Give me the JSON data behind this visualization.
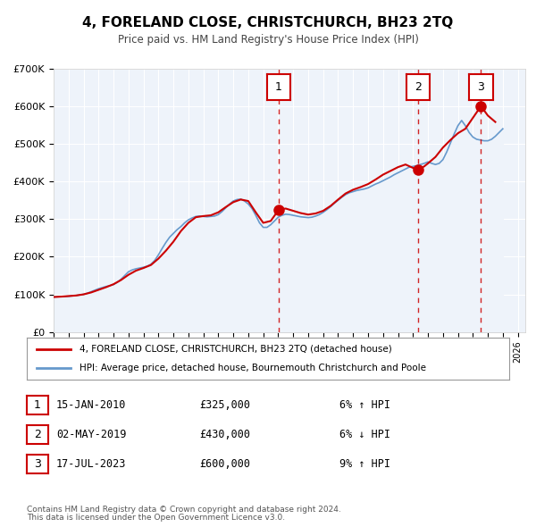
{
  "title": "4, FORELAND CLOSE, CHRISTCHURCH, BH23 2TQ",
  "subtitle": "Price paid vs. HM Land Registry's House Price Index (HPI)",
  "legend_line1": "4, FORELAND CLOSE, CHRISTCHURCH, BH23 2TQ (detached house)",
  "legend_line2": "HPI: Average price, detached house, Bournemouth Christchurch and Poole",
  "footer1": "Contains HM Land Registry data © Crown copyright and database right 2024.",
  "footer2": "This data is licensed under the Open Government Licence v3.0.",
  "price_color": "#cc0000",
  "hpi_color": "#aaccee",
  "hpi_line_color": "#6699cc",
  "marker_color": "#cc0000",
  "dashed_line_color": "#cc0000",
  "background_fill": "#eef3fa",
  "table_border_color": "#cc0000",
  "ylim": [
    0,
    700000
  ],
  "yticks": [
    0,
    100000,
    200000,
    300000,
    400000,
    500000,
    600000,
    700000
  ],
  "ytick_labels": [
    "£0",
    "£100K",
    "£200K",
    "£300K",
    "£400K",
    "£500K",
    "£600K",
    "£700K"
  ],
  "xlim_start": 1995.0,
  "xlim_end": 2026.5,
  "purchases": [
    {
      "label": "1",
      "date": 2010.04,
      "price": 325000,
      "date_str": "15-JAN-2010",
      "price_str": "£325,000",
      "pct": "6%",
      "dir": "↑"
    },
    {
      "label": "2",
      "date": 2019.33,
      "price": 430000,
      "date_str": "02-MAY-2019",
      "price_str": "£430,000",
      "pct": "6%",
      "dir": "↓"
    },
    {
      "label": "3",
      "date": 2023.54,
      "price": 600000,
      "date_str": "17-JUL-2023",
      "price_str": "£600,000",
      "pct": "9%",
      "dir": "↑"
    }
  ],
  "hpi_data_x": [
    1995.0,
    1995.25,
    1995.5,
    1995.75,
    1996.0,
    1996.25,
    1996.5,
    1996.75,
    1997.0,
    1997.25,
    1997.5,
    1997.75,
    1998.0,
    1998.25,
    1998.5,
    1998.75,
    1999.0,
    1999.25,
    1999.5,
    1999.75,
    2000.0,
    2000.25,
    2000.5,
    2000.75,
    2001.0,
    2001.25,
    2001.5,
    2001.75,
    2002.0,
    2002.25,
    2002.5,
    2002.75,
    2003.0,
    2003.25,
    2003.5,
    2003.75,
    2004.0,
    2004.25,
    2004.5,
    2004.75,
    2005.0,
    2005.25,
    2005.5,
    2005.75,
    2006.0,
    2006.25,
    2006.5,
    2006.75,
    2007.0,
    2007.25,
    2007.5,
    2007.75,
    2008.0,
    2008.25,
    2008.5,
    2008.75,
    2009.0,
    2009.25,
    2009.5,
    2009.75,
    2010.0,
    2010.25,
    2010.5,
    2010.75,
    2011.0,
    2011.25,
    2011.5,
    2011.75,
    2012.0,
    2012.25,
    2012.5,
    2012.75,
    2013.0,
    2013.25,
    2013.5,
    2013.75,
    2014.0,
    2014.25,
    2014.5,
    2014.75,
    2015.0,
    2015.25,
    2015.5,
    2015.75,
    2016.0,
    2016.25,
    2016.5,
    2016.75,
    2017.0,
    2017.25,
    2017.5,
    2017.75,
    2018.0,
    2018.25,
    2018.5,
    2018.75,
    2019.0,
    2019.25,
    2019.5,
    2019.75,
    2020.0,
    2020.25,
    2020.5,
    2020.75,
    2021.0,
    2021.25,
    2021.5,
    2021.75,
    2022.0,
    2022.25,
    2022.5,
    2022.75,
    2023.0,
    2023.25,
    2023.5,
    2023.75,
    2024.0,
    2024.25,
    2024.5,
    2024.75,
    2025.0
  ],
  "hpi_data_y": [
    93000,
    93500,
    94000,
    94500,
    95000,
    96000,
    97000,
    98500,
    100000,
    103000,
    107000,
    111000,
    115000,
    118000,
    121000,
    123000,
    126000,
    132000,
    140000,
    150000,
    160000,
    165000,
    168000,
    170000,
    172000,
    175000,
    180000,
    190000,
    205000,
    222000,
    238000,
    252000,
    262000,
    272000,
    280000,
    290000,
    298000,
    303000,
    307000,
    308000,
    307000,
    306000,
    307000,
    308000,
    312000,
    320000,
    330000,
    340000,
    348000,
    352000,
    353000,
    348000,
    340000,
    328000,
    310000,
    290000,
    278000,
    278000,
    285000,
    295000,
    305000,
    310000,
    313000,
    312000,
    310000,
    308000,
    306000,
    305000,
    304000,
    305000,
    308000,
    312000,
    318000,
    325000,
    333000,
    342000,
    350000,
    358000,
    365000,
    370000,
    373000,
    376000,
    378000,
    380000,
    383000,
    388000,
    393000,
    397000,
    402000,
    407000,
    412000,
    418000,
    423000,
    428000,
    433000,
    438000,
    440000,
    442000,
    445000,
    448000,
    452000,
    448000,
    445000,
    448000,
    458000,
    478000,
    502000,
    526000,
    548000,
    562000,
    548000,
    530000,
    518000,
    512000,
    510000,
    508000,
    508000,
    512000,
    520000,
    530000,
    540000
  ],
  "price_data_x": [
    1995.0,
    1995.5,
    1996.0,
    1996.5,
    1997.0,
    1997.5,
    1998.0,
    1998.5,
    1999.0,
    1999.5,
    2000.0,
    2000.5,
    2001.0,
    2001.5,
    2002.0,
    2002.5,
    2003.0,
    2003.5,
    2004.0,
    2004.5,
    2005.0,
    2005.5,
    2006.0,
    2006.5,
    2007.0,
    2007.5,
    2008.0,
    2008.5,
    2009.0,
    2009.5,
    2010.04,
    2010.5,
    2011.0,
    2011.5,
    2012.0,
    2012.5,
    2013.0,
    2013.5,
    2014.0,
    2014.5,
    2015.0,
    2015.5,
    2016.0,
    2016.5,
    2017.0,
    2017.5,
    2018.0,
    2018.5,
    2019.33,
    2019.75,
    2020.0,
    2020.5,
    2021.0,
    2021.5,
    2022.0,
    2022.5,
    2023.54,
    2024.0,
    2024.5
  ],
  "price_data_y": [
    93000,
    94000,
    95500,
    97000,
    100000,
    105000,
    112000,
    119000,
    127000,
    138000,
    152000,
    163000,
    170000,
    178000,
    195000,
    216000,
    240000,
    268000,
    290000,
    305000,
    308000,
    310000,
    318000,
    332000,
    345000,
    352000,
    348000,
    318000,
    290000,
    295000,
    325000,
    328000,
    322000,
    316000,
    312000,
    315000,
    322000,
    335000,
    352000,
    368000,
    378000,
    385000,
    393000,
    405000,
    418000,
    428000,
    438000,
    445000,
    430000,
    440000,
    448000,
    465000,
    490000,
    510000,
    528000,
    540000,
    600000,
    575000,
    558000
  ]
}
